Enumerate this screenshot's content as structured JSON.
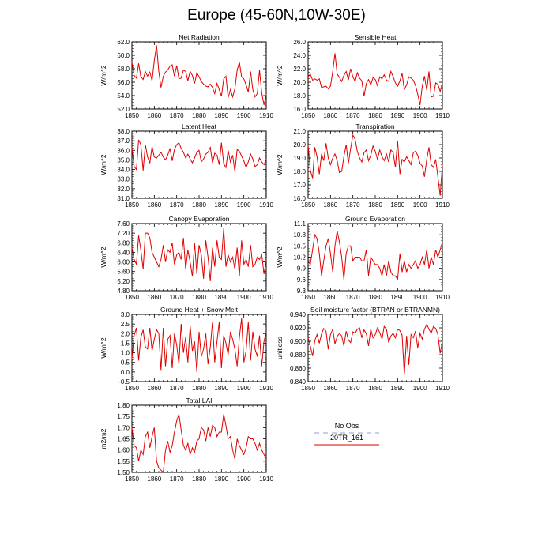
{
  "title": "Europe (45-60N,10W-30E)",
  "legend": {
    "entries": [
      {
        "label": "No Obs",
        "color": "#9999dd",
        "dashed": true
      },
      {
        "label": "20TR_161",
        "color": "#e00000",
        "dashed": false
      }
    ]
  },
  "chart_data": [
    {
      "type": "line",
      "title": "Net Radiation",
      "ylabel": "W/m^2",
      "xlim": [
        1850,
        1910
      ],
      "ylim": [
        52.0,
        62.0
      ],
      "xticks": [
        "1850",
        "1860",
        "1870",
        "1880",
        "1890",
        "1900",
        "1910"
      ],
      "yticks": [
        "52.0",
        "54.0",
        "56.0",
        "58.0",
        "60.0",
        "62.0"
      ],
      "x_start": 1850,
      "series": [
        {
          "color": "#e00000",
          "values": [
            59.0,
            57.0,
            56.6,
            58.8,
            56.8,
            56.4,
            57.6,
            56.9,
            57.5,
            56.2,
            59.2,
            61.5,
            57.6,
            55.2,
            56.9,
            57.5,
            57.8,
            58.4,
            58.6,
            56.9,
            58.5,
            56.5,
            56.6,
            57.8,
            57.6,
            56.2,
            57.6,
            57.0,
            55.8,
            57.4,
            56.8,
            56.1,
            55.7,
            55.4,
            55.3,
            55.7,
            55.2,
            54.3,
            55.8,
            54.9,
            53.9,
            56.5,
            56.9,
            53.7,
            54.9,
            53.8,
            55.0,
            57.8,
            59.0,
            56.8,
            56.5,
            55.6,
            54.5,
            57.6,
            54.9,
            53.8,
            54.3,
            57.8,
            54.4,
            52.6,
            54.2
          ]
        }
      ]
    },
    {
      "type": "line",
      "title": "Sensible Heat",
      "ylabel": "W/m^2",
      "xlim": [
        1850,
        1910
      ],
      "ylim": [
        16.0,
        26.0
      ],
      "xticks": [
        "1850",
        "1860",
        "1870",
        "1880",
        "1890",
        "1900",
        "1910"
      ],
      "yticks": [
        "16.0",
        "18.0",
        "20.0",
        "22.0",
        "24.0",
        "26.0"
      ],
      "x_start": 1850,
      "series": [
        {
          "color": "#e00000",
          "values": [
            20.8,
            21.2,
            20.3,
            20.5,
            20.3,
            20.5,
            19.2,
            19.3,
            19.4,
            19.0,
            19.4,
            21.6,
            24.3,
            21.2,
            20.7,
            20.1,
            21.0,
            21.6,
            20.3,
            22.0,
            20.8,
            20.1,
            21.4,
            20.6,
            20.2,
            17.9,
            19.8,
            20.4,
            19.6,
            20.7,
            20.4,
            19.5,
            20.8,
            20.5,
            21.1,
            20.3,
            20.1,
            21.6,
            20.8,
            19.9,
            19.4,
            20.2,
            21.3,
            18.9,
            19.6,
            20.8,
            20.6,
            20.3,
            19.5,
            18.2,
            16.6,
            19.4,
            20.9,
            18.8,
            21.6,
            17.8,
            17.9,
            19.9,
            19.7,
            18.6,
            19.8
          ]
        }
      ]
    },
    {
      "type": "line",
      "title": "Latent Heat",
      "ylabel": "W/m^2",
      "xlim": [
        1850,
        1910
      ],
      "ylim": [
        31.0,
        38.0
      ],
      "xticks": [
        "1850",
        "1860",
        "1870",
        "1880",
        "1890",
        "1900",
        "1910"
      ],
      "yticks": [
        "31.0",
        "32.0",
        "33.0",
        "34.0",
        "35.0",
        "36.0",
        "37.0",
        "38.0"
      ],
      "x_start": 1850,
      "series": [
        {
          "color": "#e00000",
          "values": [
            36.3,
            34.3,
            34.0,
            37.1,
            36.6,
            33.9,
            36.6,
            35.3,
            34.7,
            36.4,
            35.3,
            35.2,
            35.5,
            35.8,
            35.3,
            35.0,
            35.5,
            36.2,
            34.9,
            36.1,
            36.6,
            36.8,
            36.2,
            35.8,
            35.2,
            35.6,
            35.1,
            34.7,
            35.2,
            35.8,
            36.0,
            34.8,
            35.1,
            35.6,
            35.8,
            36.3,
            34.7,
            35.7,
            35.5,
            34.5,
            36.8,
            34.6,
            34.2,
            36.0,
            34.8,
            35.5,
            33.8,
            36.1,
            35.9,
            35.4,
            34.9,
            34.2,
            34.8,
            35.6,
            35.1,
            34.3,
            34.5,
            35.2,
            34.8,
            34.5,
            35.1
          ]
        }
      ]
    },
    {
      "type": "line",
      "title": "Transpiration",
      "ylabel": "W/m^2",
      "xlim": [
        1850,
        1910
      ],
      "ylim": [
        16.0,
        21.0
      ],
      "xticks": [
        "1850",
        "1860",
        "1870",
        "1880",
        "1890",
        "1900",
        "1910"
      ],
      "yticks": [
        "16.0",
        "17.0",
        "18.0",
        "19.0",
        "20.0",
        "21.0"
      ],
      "x_start": 1850,
      "series": [
        {
          "color": "#e00000",
          "values": [
            20.0,
            18.1,
            17.5,
            19.8,
            19.1,
            17.8,
            19.3,
            18.8,
            20.1,
            19.0,
            18.5,
            19.0,
            19.3,
            18.8,
            17.9,
            18.0,
            19.1,
            20.0,
            18.6,
            19.7,
            20.7,
            20.4,
            19.5,
            19.0,
            18.7,
            19.4,
            19.6,
            18.8,
            19.2,
            19.9,
            19.5,
            18.9,
            19.6,
            19.1,
            18.8,
            19.3,
            18.7,
            19.6,
            19.4,
            18.3,
            20.3,
            17.8,
            18.9,
            18.7,
            19.1,
            18.8,
            18.5,
            19.4,
            19.5,
            19.2,
            18.6,
            18.4,
            17.6,
            18.9,
            19.8,
            18.5,
            18.3,
            18.9,
            17.6,
            16.2,
            18.5
          ]
        }
      ]
    },
    {
      "type": "line",
      "title": "Canopy Evaporation",
      "ylabel": "W/m^2",
      "xlim": [
        1850,
        1910
      ],
      "ylim": [
        4.8,
        7.6
      ],
      "xticks": [
        "1850",
        "1860",
        "1870",
        "1880",
        "1890",
        "1900",
        "1910"
      ],
      "yticks": [
        "4.80",
        "5.20",
        "5.60",
        "6.00",
        "6.40",
        "6.80",
        "7.20",
        "7.60"
      ],
      "x_start": 1850,
      "series": [
        {
          "color": "#e00000",
          "values": [
            6.6,
            6.1,
            5.9,
            7.1,
            6.5,
            5.7,
            7.2,
            7.2,
            7.0,
            6.4,
            6.2,
            6.0,
            5.8,
            6.1,
            6.7,
            6.0,
            6.5,
            6.4,
            6.8,
            5.9,
            6.3,
            6.4,
            6.1,
            7.0,
            5.7,
            6.5,
            6.0,
            5.4,
            6.8,
            5.5,
            6.7,
            6.3,
            5.3,
            6.9,
            6.2,
            5.2,
            6.6,
            5.8,
            6.9,
            6.2,
            6.1,
            7.4,
            5.8,
            6.3,
            6.0,
            6.2,
            5.7,
            6.6,
            5.4,
            6.9,
            5.9,
            6.1,
            5.8,
            6.7,
            5.8,
            5.9,
            6.2,
            6.1,
            6.3,
            5.5,
            6.1
          ]
        }
      ]
    },
    {
      "type": "line",
      "title": "Ground Evaporation",
      "ylabel": "W/m^2",
      "xlim": [
        1850,
        1910
      ],
      "ylim": [
        9.3,
        11.1
      ],
      "xticks": [
        "1850",
        "1860",
        "1870",
        "1880",
        "1890",
        "1900",
        "1910"
      ],
      "yticks": [
        "9.3",
        "9.6",
        "9.9",
        "10.2",
        "10.5",
        "10.8",
        "11.1"
      ],
      "x_start": 1850,
      "series": [
        {
          "color": "#e00000",
          "values": [
            10.1,
            10.0,
            10.4,
            10.8,
            10.7,
            10.3,
            9.7,
            10.1,
            10.5,
            10.7,
            10.3,
            9.8,
            10.5,
            10.9,
            10.6,
            10.2,
            9.6,
            10.3,
            10.5,
            10.5,
            10.1,
            10.2,
            10.2,
            10.2,
            10.1,
            10.1,
            10.4,
            9.7,
            10.2,
            10.1,
            10.0,
            10.0,
            9.9,
            9.7,
            10.0,
            9.7,
            10.1,
            9.8,
            9.7,
            9.7,
            9.6,
            10.3,
            9.8,
            10.1,
            9.8,
            10.0,
            9.9,
            10.0,
            10.1,
            9.9,
            10.0,
            10.2,
            10.0,
            10.4,
            9.9,
            10.2,
            10.0,
            10.4,
            10.2,
            10.4,
            10.6
          ]
        }
      ]
    },
    {
      "type": "line",
      "title": "Ground Heat + Snow Melt",
      "ylabel": "W/m^2",
      "xlim": [
        1850,
        1910
      ],
      "ylim": [
        -0.5,
        3.0
      ],
      "xticks": [
        "1850",
        "1860",
        "1870",
        "1880",
        "1890",
        "1900",
        "1910"
      ],
      "yticks": [
        "-0.5",
        "0.0",
        "0.5",
        "1.0",
        "1.5",
        "2.0",
        "2.5",
        "3.0"
      ],
      "x_start": 1850,
      "series": [
        {
          "color": "#e00000",
          "values": [
            0.7,
            1.9,
            2.3,
            0.6,
            1.8,
            2.2,
            1.3,
            1.2,
            2.3,
            1.1,
            1.7,
            2.2,
            2.0,
            0.1,
            2.3,
            0.3,
            1.7,
            1.9,
            0.2,
            2.0,
            1.4,
            0.4,
            2.5,
            1.0,
            1.8,
            0.5,
            2.4,
            1.1,
            1.6,
            0.0,
            2.1,
            0.8,
            1.2,
            2.0,
            0.4,
            1.3,
            2.6,
            0.5,
            1.6,
            2.6,
            0.2,
            1.9,
            1.5,
            0.9,
            2.1,
            1.7,
            1.2,
            0.3,
            1.8,
            2.8,
            0.5,
            1.1,
            2.6,
            0.6,
            2.1,
            1.2,
            0.8,
            1.9,
            0.3,
            1.6,
            2.1
          ]
        }
      ]
    },
    {
      "type": "line",
      "title": "Soil moisture factor (BTRAN or BTRANMN)",
      "ylabel": "unitless",
      "xlim": [
        1850,
        1910
      ],
      "ylim": [
        0.84,
        0.94
      ],
      "xticks": [
        "1850",
        "1860",
        "1870",
        "1880",
        "1890",
        "1900",
        "1910"
      ],
      "yticks": [
        "0.840",
        "0.860",
        "0.880",
        "0.900",
        "0.920",
        "0.940"
      ],
      "x_start": 1850,
      "series": [
        {
          "color": "#e00000",
          "values": [
            0.905,
            0.893,
            0.878,
            0.901,
            0.91,
            0.897,
            0.911,
            0.919,
            0.915,
            0.888,
            0.91,
            0.918,
            0.896,
            0.907,
            0.912,
            0.908,
            0.893,
            0.915,
            0.902,
            0.898,
            0.914,
            0.912,
            0.918,
            0.92,
            0.905,
            0.917,
            0.911,
            0.893,
            0.918,
            0.905,
            0.91,
            0.92,
            0.913,
            0.903,
            0.922,
            0.918,
            0.898,
            0.908,
            0.912,
            0.905,
            0.918,
            0.916,
            0.909,
            0.85,
            0.908,
            0.865,
            0.91,
            0.905,
            0.915,
            0.89,
            0.912,
            0.903,
            0.918,
            0.925,
            0.918,
            0.912,
            0.922,
            0.919,
            0.91,
            0.882,
            0.9
          ]
        }
      ]
    },
    {
      "type": "line",
      "title": "Total LAI",
      "ylabel": "m2/m2",
      "xlim": [
        1850,
        1910
      ],
      "ylim": [
        1.5,
        1.8
      ],
      "xticks": [
        "1850",
        "1860",
        "1870",
        "1880",
        "1890",
        "1900",
        "1910"
      ],
      "yticks": [
        "1.50",
        "1.55",
        "1.60",
        "1.65",
        "1.70",
        "1.75",
        "1.80"
      ],
      "x_start": 1850,
      "series": [
        {
          "color": "#e00000",
          "values": [
            1.7,
            1.62,
            1.61,
            1.55,
            1.6,
            1.58,
            1.66,
            1.68,
            1.61,
            1.66,
            1.7,
            1.55,
            1.52,
            1.51,
            1.5,
            1.6,
            1.64,
            1.59,
            1.62,
            1.68,
            1.73,
            1.76,
            1.69,
            1.62,
            1.6,
            1.63,
            1.58,
            1.61,
            1.59,
            1.64,
            1.65,
            1.7,
            1.69,
            1.64,
            1.7,
            1.66,
            1.71,
            1.7,
            1.66,
            1.68,
            1.68,
            1.76,
            1.71,
            1.65,
            1.66,
            1.6,
            1.56,
            1.65,
            1.62,
            1.6,
            1.58,
            1.61,
            1.66,
            1.65,
            1.65,
            1.63,
            1.6,
            1.63,
            1.6,
            1.58,
            1.56
          ]
        }
      ]
    }
  ]
}
